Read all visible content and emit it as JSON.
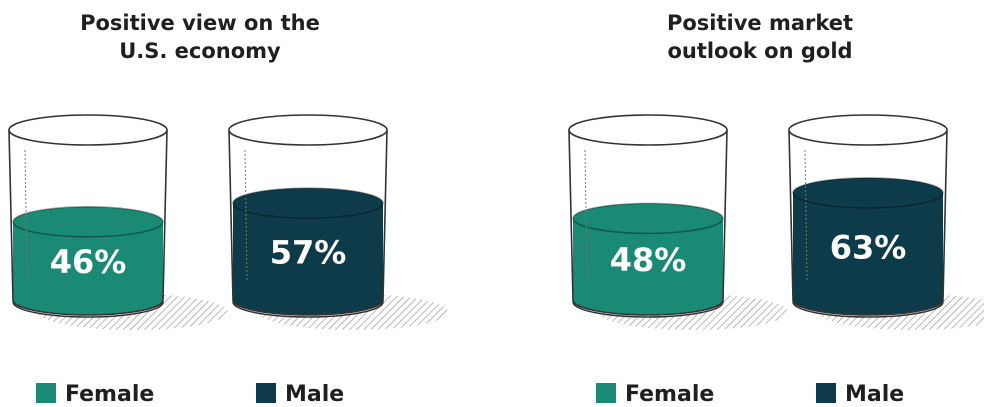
{
  "chart_data": [
    {
      "type": "glass",
      "title": [
        "Positive view on the",
        "U.S. economy"
      ],
      "categories": [
        "Female",
        "Male"
      ],
      "values": [
        46,
        57
      ],
      "value_labels": [
        "46%",
        "57%"
      ],
      "colors": [
        "#1a8a74",
        "#0e3b4a"
      ],
      "ylim": [
        0,
        100
      ]
    },
    {
      "type": "glass",
      "title": [
        "Positive market",
        "outlook on gold"
      ],
      "categories": [
        "Female",
        "Male"
      ],
      "values": [
        48,
        63
      ],
      "value_labels": [
        "48%",
        "63%"
      ],
      "colors": [
        "#1a8a74",
        "#0e3b4a"
      ],
      "ylim": [
        0,
        100
      ]
    }
  ]
}
